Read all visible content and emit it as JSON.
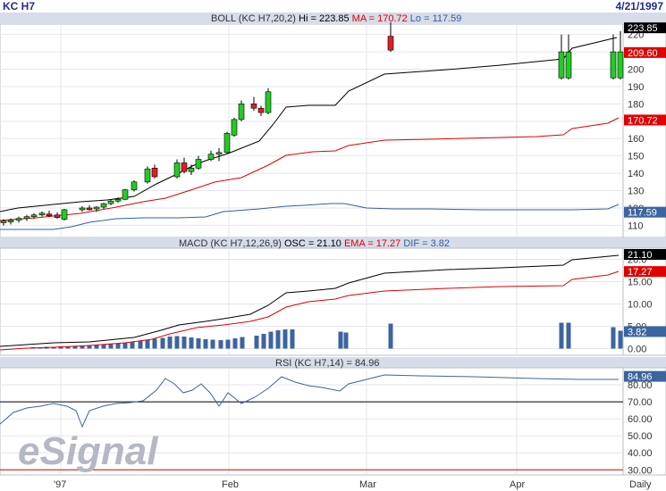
{
  "header": {
    "symbol": "KC H7",
    "date": "4/21/1997"
  },
  "panels": {
    "boll": {
      "title": "BOLL (KC H7,20,2)",
      "hi_label": "Hi = 223.85",
      "ma_label": "MA = 170.72",
      "lo_label": "Lo = 117.59"
    },
    "macd": {
      "title": "MACD (KC H7,12,26,9)",
      "osc_label": "OSC = 21.10",
      "ema_label": "EMA = 17.27",
      "dif_label": "DIF = 3.82"
    },
    "rsi": {
      "title": "RSI (KC H7,14) = 84.96"
    }
  },
  "watermark": "eSignal",
  "footer": {
    "interval": "Daily"
  },
  "colors": {
    "upper": "#000000",
    "ma": "#e00000",
    "lower": "#3060a0",
    "up_candle": "#22cc22",
    "down_candle": "#e02020",
    "osc": "#000000",
    "ema": "#e00000",
    "dif_bar": "#3c64a0",
    "rsi": "#3c64a0",
    "ref_70": "#000000",
    "ref_30": "#e00000",
    "title_bg": "#d6dce8"
  },
  "chart_data": [
    {
      "type": "candlestick",
      "name": "BOLL",
      "x_ticks": [
        "'97",
        "Feb",
        "Mar",
        "Apr"
      ],
      "y_ticks": [
        110,
        120,
        130,
        140,
        150,
        160,
        170,
        180,
        190,
        200,
        210,
        220
      ],
      "ylim": [
        103,
        226
      ],
      "value_labels": [
        {
          "text": "223.85",
          "value": 223.85,
          "tone": "dark"
        },
        {
          "text": "209.60",
          "value": 209.6,
          "tone": "red"
        },
        {
          "text": "170.72",
          "value": 170.72,
          "tone": "red"
        },
        {
          "text": "117.59",
          "value": 117.59,
          "tone": "blue"
        }
      ],
      "candles": [
        {
          "i": 0,
          "o": 111.5,
          "h": 113.5,
          "l": 109.8,
          "c": 112.5
        },
        {
          "i": 1,
          "o": 112,
          "h": 114,
          "l": 110.5,
          "c": 113
        },
        {
          "i": 2,
          "o": 113,
          "h": 115,
          "l": 111.5,
          "c": 114
        },
        {
          "i": 3,
          "o": 114,
          "h": 116,
          "l": 112.5,
          "c": 115
        },
        {
          "i": 4,
          "o": 115,
          "h": 117,
          "l": 113.8,
          "c": 116
        },
        {
          "i": 5,
          "o": 116,
          "h": 118,
          "l": 115,
          "c": 117
        },
        {
          "i": 6,
          "o": 116.5,
          "h": 118.5,
          "l": 114.8,
          "c": 116
        },
        {
          "i": 7,
          "o": 116,
          "h": 117.5,
          "l": 113.8,
          "c": 114.5
        },
        {
          "i": 8,
          "o": 113.5,
          "h": 119.5,
          "l": 112.8,
          "c": 119
        },
        {
          "i": 9,
          "o": 119,
          "h": 121,
          "l": 117.8,
          "c": 120
        },
        {
          "i": 10,
          "o": 120,
          "h": 121.5,
          "l": 118.5,
          "c": 119.5
        },
        {
          "i": 11,
          "o": 119.5,
          "h": 121,
          "l": 117.8,
          "c": 120.5
        },
        {
          "i": 12,
          "o": 120.5,
          "h": 123,
          "l": 119.5,
          "c": 122.5
        },
        {
          "i": 13,
          "o": 122.5,
          "h": 125,
          "l": 121.5,
          "c": 124
        },
        {
          "i": 14,
          "o": 124,
          "h": 126,
          "l": 123,
          "c": 125
        },
        {
          "i": 15,
          "o": 125,
          "h": 131,
          "l": 124.5,
          "c": 130.5
        },
        {
          "i": 16,
          "o": 130.5,
          "h": 136,
          "l": 129.5,
          "c": 135
        },
        {
          "i": 17,
          "o": 135,
          "h": 144,
          "l": 134,
          "c": 142.5
        },
        {
          "i": 18,
          "o": 143,
          "h": 145,
          "l": 137,
          "c": 138
        },
        {
          "i": 19,
          "o": 138,
          "h": 148,
          "l": 137,
          "c": 146
        },
        {
          "i": 20,
          "o": 146,
          "h": 149,
          "l": 140,
          "c": 141
        },
        {
          "i": 21,
          "o": 141,
          "h": 145,
          "l": 139,
          "c": 143
        },
        {
          "i": 22,
          "o": 143,
          "h": 150,
          "l": 142,
          "c": 148
        },
        {
          "i": 23,
          "o": 148,
          "h": 153,
          "l": 147,
          "c": 151
        },
        {
          "i": 24,
          "o": 152,
          "h": 154.5,
          "l": 147,
          "c": 152
        },
        {
          "i": 25,
          "o": 152,
          "h": 164,
          "l": 151,
          "c": 163
        },
        {
          "i": 26,
          "o": 162,
          "h": 172,
          "l": 161,
          "c": 171
        },
        {
          "i": 27,
          "o": 171,
          "h": 182,
          "l": 170,
          "c": 180
        },
        {
          "i": 28,
          "o": 180,
          "h": 184,
          "l": 176,
          "c": 177.5
        },
        {
          "i": 29,
          "o": 177.5,
          "h": 179,
          "l": 173,
          "c": 175
        },
        {
          "i": 30,
          "o": 175,
          "h": 189,
          "l": 174,
          "c": 187
        },
        {
          "i": 31,
          "o": 219,
          "h": 227,
          "l": 210,
          "c": 211
        },
        {
          "i": 32,
          "o": 195,
          "h": 220,
          "l": 194,
          "c": 210
        },
        {
          "i": 33,
          "o": 195,
          "h": 220,
          "l": 194,
          "c": 210
        },
        {
          "i": 34,
          "o": 195,
          "h": 220,
          "l": 194,
          "c": 210
        },
        {
          "i": 35,
          "o": 195,
          "h": 222,
          "l": 194,
          "c": 210
        }
      ],
      "candle_x": [
        5,
        13,
        22,
        30,
        38,
        47,
        55,
        63,
        72,
        80,
        88,
        97,
        105,
        113,
        122,
        130,
        138,
        147,
        155,
        163,
        172,
        180,
        188,
        197,
        205,
        213,
        222,
        230,
        238,
        247,
        255,
        264,
        272,
        280,
        289,
        297
      ],
      "xdays": [
        0,
        1,
        2,
        3,
        4,
        5,
        6,
        7,
        8,
        9,
        10,
        11,
        12,
        13,
        14,
        15,
        16,
        17,
        18,
        19,
        20,
        21,
        22,
        23,
        24,
        25,
        26,
        27,
        28,
        29,
        30,
        31,
        32,
        33,
        34,
        35
      ],
      "series": [
        {
          "name": "Hi",
          "values": [
            [
              0,
              114
            ],
            [
              6,
              117
            ],
            [
              12,
              120
            ],
            [
              17,
              126
            ],
            [
              19,
              139
            ],
            [
              22,
              146
            ],
            [
              23,
              150
            ],
            [
              25,
              155
            ],
            [
              27,
              163
            ],
            [
              30,
              178
            ],
            [
              31,
              184
            ],
            [
              32,
              198
            ],
            [
              33,
              200
            ],
            [
              34,
              208
            ],
            [
              35,
              210
            ],
            [
              36,
              224
            ]
          ]
        },
        {
          "name": "MA",
          "values": [
            [
              0,
              107
            ],
            [
              6,
              109
            ],
            [
              12,
              113
            ],
            [
              17,
              119
            ],
            [
              19,
              126
            ],
            [
              22,
              131
            ],
            [
              25,
              140
            ],
            [
              27,
              146
            ],
            [
              30,
              150
            ],
            [
              31,
              155
            ],
            [
              32,
              157
            ],
            [
              33,
              159
            ],
            [
              34,
              160
            ],
            [
              35,
              162
            ],
            [
              36,
              165
            ],
            [
              37,
              170.72
            ]
          ]
        },
        {
          "name": "Lo",
          "values": [
            [
              0,
              106
            ],
            [
              6,
              107
            ],
            [
              12,
              109
            ],
            [
              17,
              110
            ],
            [
              19,
              112
            ],
            [
              22,
              115
            ],
            [
              25,
              116
            ],
            [
              27,
              117
            ],
            [
              30,
              117
            ],
            [
              31,
              116
            ],
            [
              32,
              116
            ],
            [
              33,
              116
            ],
            [
              34,
              116
            ],
            [
              35,
              116
            ],
            [
              36,
              117.59
            ]
          ]
        }
      ]
    },
    {
      "type": "line",
      "name": "MACD",
      "y_ticks": [
        0.0,
        5.0,
        10.0,
        15.0,
        20.0
      ],
      "y_tick_labels": [
        "0.00",
        "5.00",
        "10.00",
        "15.00",
        "20.0"
      ],
      "ylim": [
        -1.5,
        22.5
      ],
      "value_labels": [
        {
          "text": "21.10",
          "value": 21.1,
          "tone": "dark"
        },
        {
          "text": "17.27",
          "value": 17.27,
          "tone": "red"
        },
        {
          "text": "3.82",
          "value": 3.82,
          "tone": "blue"
        }
      ],
      "series": [
        {
          "name": "OSC",
          "values": [
            0.5,
            0.9,
            1.4,
            1.9,
            2.5,
            3.3,
            4.4,
            5.6,
            6.1,
            6.9,
            7.5,
            8.6,
            10.3,
            11.6,
            13.0,
            13.5,
            13.8,
            14.2,
            15.5,
            16.2,
            16.8,
            17.2,
            17.5,
            17.8,
            18.0,
            18.3,
            18.7,
            19.0,
            19.3,
            19.6,
            19.8,
            20.2,
            20.6,
            21.1
          ]
        },
        {
          "name": "EMA",
          "values": [
            0.2,
            0.4,
            0.7,
            1.0,
            1.4,
            1.9,
            2.5,
            3.2,
            3.7,
            4.3,
            4.8,
            5.4,
            6.3,
            7.4,
            8.6,
            9.3,
            10.0,
            10.7,
            11.4,
            12.0,
            12.6,
            13.1,
            13.5,
            13.9,
            14.2,
            14.5,
            14.8,
            15.1,
            15.4,
            15.7,
            16.0,
            16.4,
            16.8,
            17.27
          ]
        },
        {
          "name": "DIF",
          "values": [
            0.4,
            0.5,
            0.6,
            0.8,
            1.0,
            1.2,
            1.5,
            1.8,
            1.9,
            2.0,
            2.1,
            2.3,
            2.6,
            3.0,
            3.2,
            2.8,
            2.4,
            2.2,
            2.6,
            2.9,
            3.1,
            3.4,
            3.6,
            3.8,
            3.9,
            3.9,
            3.8,
            3.8,
            3.8,
            3.8,
            3.8,
            3.8,
            3.8,
            3.82
          ]
        }
      ]
    },
    {
      "type": "line",
      "name": "RSI",
      "y_ticks": [
        30,
        40,
        50,
        60,
        70,
        80
      ],
      "y_tick_labels": [
        "30.00",
        "40.00",
        "50.00",
        "60.00",
        "70.00",
        "80.00"
      ],
      "ylim": [
        27,
        90
      ],
      "value_labels": [
        {
          "text": "84.96",
          "value": 84.96,
          "tone": "blue"
        }
      ],
      "reference_lines": [
        70,
        30
      ],
      "series": [
        {
          "name": "RSI",
          "values": [
            58,
            63,
            65,
            66,
            68,
            67,
            69,
            62,
            68,
            70,
            69,
            70,
            71,
            73,
            75,
            78,
            80,
            85,
            82,
            80,
            84,
            86,
            82,
            80,
            78,
            72,
            74,
            76,
            80,
            84,
            85,
            86,
            86,
            85.5,
            85,
            85,
            85,
            84.96
          ]
        }
      ]
    }
  ]
}
